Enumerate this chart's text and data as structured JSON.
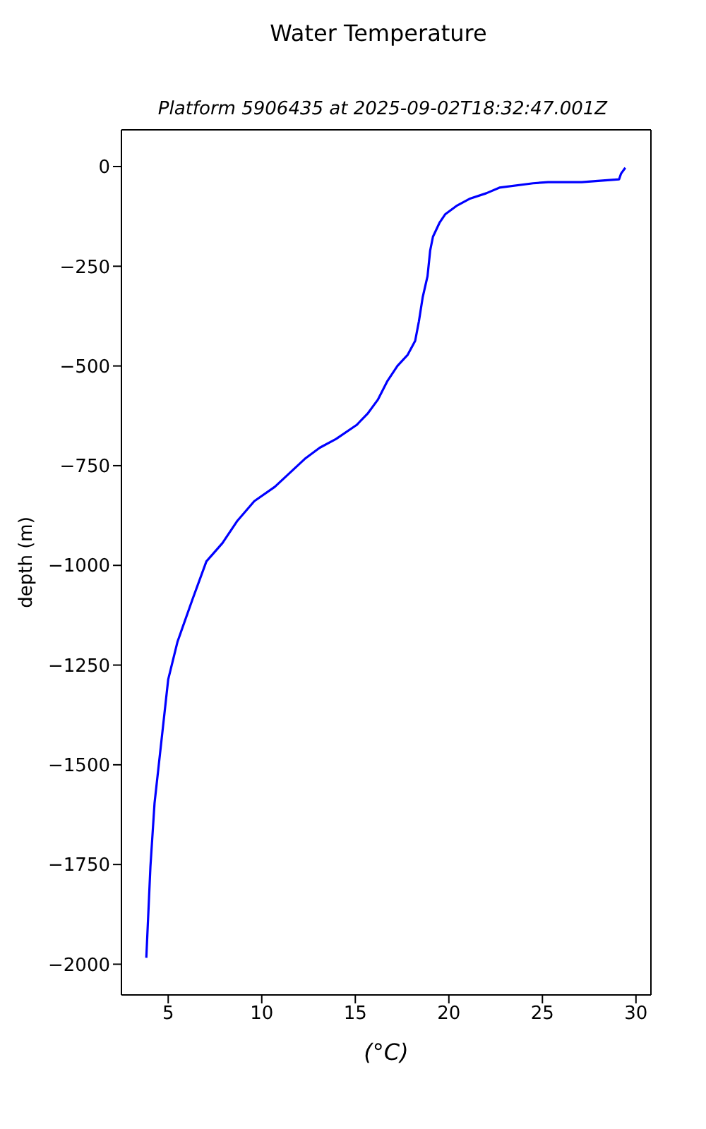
{
  "chart_data": {
    "type": "line",
    "title": "Water Temperature",
    "subtitle": "Platform 5906435 at 2025-09-02T18:32:47.001Z",
    "xlabel": "(°C)",
    "ylabel": "depth (m)",
    "series": [
      {
        "color": "#0000ff",
        "x": [
          29.43,
          29.2,
          29.1,
          27.1,
          25.3,
          24.5,
          22.7,
          22.0,
          21.1,
          20.4,
          19.8,
          19.5,
          19.15,
          19.0,
          18.86,
          18.6,
          18.4,
          18.2,
          17.8,
          17.25,
          16.7,
          16.2,
          15.65,
          15.07,
          13.97,
          13.1,
          12.3,
          11.5,
          10.7,
          9.6,
          8.7,
          7.9,
          7.04,
          6.3,
          5.5,
          5.0,
          4.56,
          4.27,
          4.05,
          3.83
        ],
        "values": [
          -3,
          -18,
          -32,
          -39,
          -39,
          -42,
          -53,
          -67,
          -81,
          -99,
          -120,
          -141,
          -176,
          -211,
          -275,
          -328,
          -388,
          -437,
          -472,
          -500,
          -539,
          -585,
          -620,
          -648,
          -683,
          -705,
          -733,
          -768,
          -803,
          -839,
          -888,
          -944,
          -990,
          -1085,
          -1191,
          -1286,
          -1473,
          -1596,
          -1755,
          -1984
        ]
      }
    ],
    "xlim": [
      2.5,
      30.8
    ],
    "xticks": [
      5,
      10,
      15,
      20,
      25,
      30
    ],
    "ylim": [
      -2077,
      92
    ],
    "yticks": [
      0,
      -250,
      -500,
      -750,
      -1000,
      -1250,
      -1500,
      -1750,
      -2000
    ],
    "grid": false,
    "legend": false,
    "marker": "none",
    "line_style": "solid"
  }
}
